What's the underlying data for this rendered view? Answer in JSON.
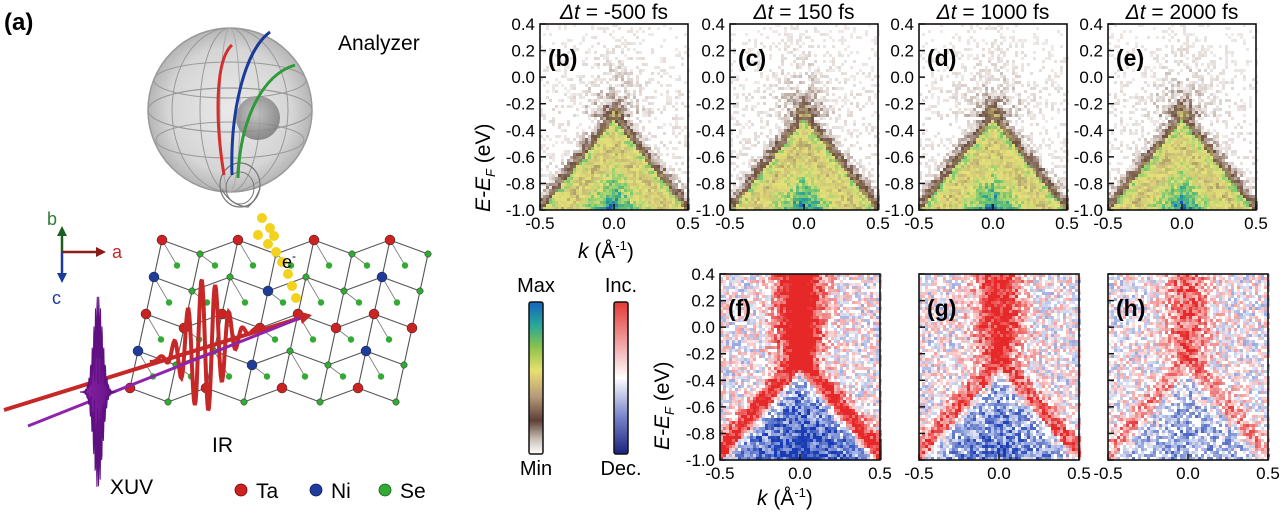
{
  "figure": {
    "panel_a": {
      "label": "(a)",
      "analyzer_label": "Analyzer",
      "axis_a": "a",
      "axis_b": "b",
      "axis_c": "c",
      "electron_label": "e",
      "electron_superscript": "-",
      "ir_label": "IR",
      "xuv_label": "XUV",
      "legend": [
        {
          "symbol": "Ta",
          "color": "#cc2222"
        },
        {
          "symbol": "Ni",
          "color": "#1f3c9c"
        },
        {
          "symbol": "Se",
          "color": "#33aa33"
        }
      ]
    },
    "top_row": {
      "panels": [
        {
          "label": "(b)",
          "delay": "-500 fs"
        },
        {
          "label": "(c)",
          "delay": "150 fs"
        },
        {
          "label": "(d)",
          "delay": "1000 fs"
        },
        {
          "label": "(e)",
          "delay": "2000 fs"
        }
      ],
      "delay_prefix": "Δt = "
    },
    "bottom_row": {
      "panels": [
        {
          "label": "(f)"
        },
        {
          "label": "(g)"
        },
        {
          "label": "(h)"
        }
      ]
    },
    "axes": {
      "ylabel_main": "E-E",
      "ylabel_sub": "F",
      "ylabel_unit": " (eV)",
      "xlabel_main": "k",
      "xlabel_unit": " (Å",
      "xlabel_exp": "-1",
      "xlabel_close": ")",
      "y_ticks": [
        "0.4",
        "0.2",
        "0.0",
        "-0.2",
        "-0.4",
        "-0.6",
        "-0.8",
        "-1.0"
      ],
      "x_ticks": [
        "-0.5",
        "0.0",
        "0.5"
      ]
    },
    "colorbars": {
      "intensity": {
        "top": "Max",
        "bottom": "Min"
      },
      "difference": {
        "top": "Inc.",
        "bottom": "Dec."
      }
    }
  }
}
